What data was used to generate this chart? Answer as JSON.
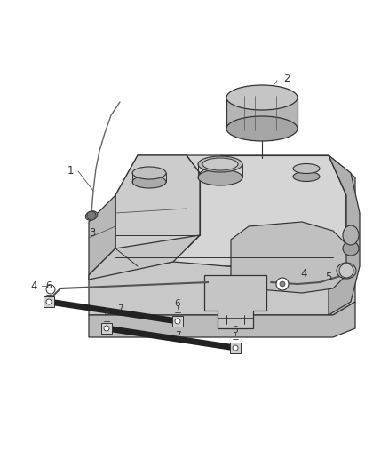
{
  "bg_color": "#f5f5f5",
  "line_color": "#555555",
  "dark_line": "#333333",
  "fill_light": "#d8d8d8",
  "fill_mid": "#c0c0c0",
  "fill_dark": "#a8a8a8",
  "fill_darker": "#909090",
  "label_color": "#333333",
  "fig_width": 4.38,
  "fig_height": 5.33,
  "dpi": 100,
  "wire_color": "#666666",
  "strap_color": "#222222",
  "tank_bg": "#e2e2e2"
}
